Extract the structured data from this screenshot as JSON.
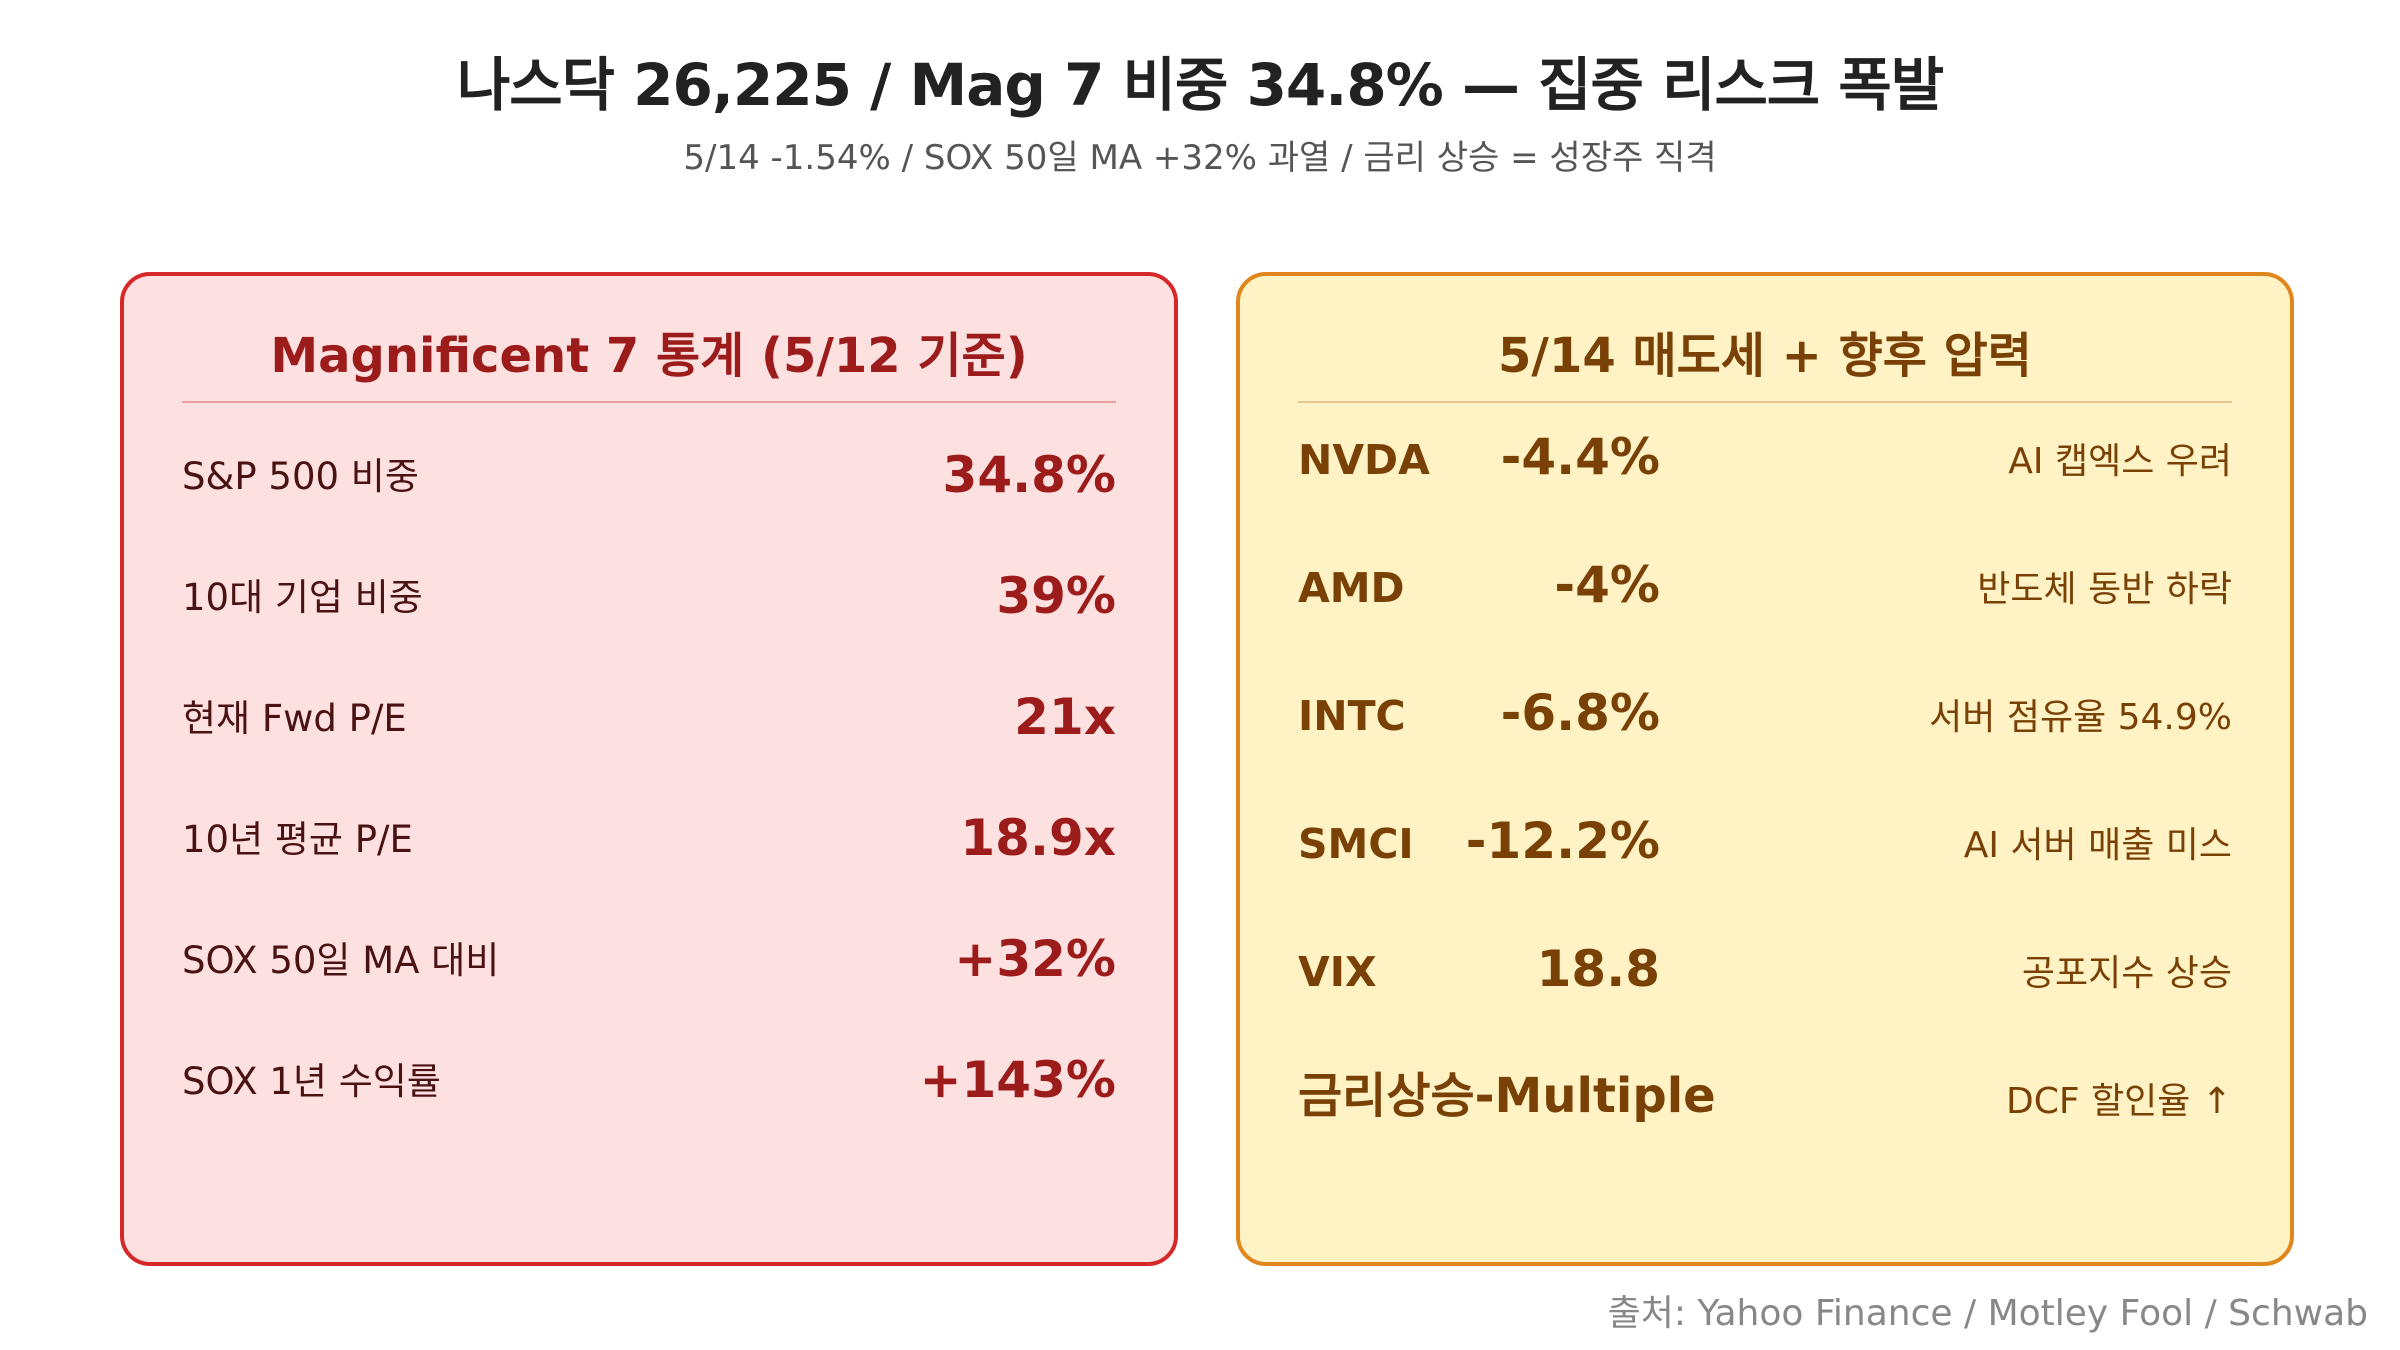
{
  "header": {
    "title": "나스닥 26,225 / Mag 7 비중 34.8% — 집중 리스크 폭발",
    "subtitle": "5/14 -1.54% / SOX 50일 MA +32% 과열 / 금리 상승 = 성장주 직격"
  },
  "left_panel": {
    "title": "Magnificent 7 통계 (5/12 기준)",
    "rows": [
      {
        "label": "S&P 500 비중",
        "value": "34.8%"
      },
      {
        "label": "10대 기업 비중",
        "value": "39%"
      },
      {
        "label": "현재 Fwd P/E",
        "value": "21x"
      },
      {
        "label": "10년 평균 P/E",
        "value": "18.9x"
      },
      {
        "label": "SOX 50일 MA 대비",
        "value": "+32%"
      },
      {
        "label": "SOX 1년 수익률",
        "value": "+143%"
      }
    ]
  },
  "right_panel": {
    "title": "5/14 매도세 + 향후 압력",
    "rows": [
      {
        "ticker": "NVDA",
        "change": "-4.4%",
        "note": "AI 캡엑스 우려"
      },
      {
        "ticker": "AMD",
        "change": "-4%",
        "note": "반도체 동반 하락"
      },
      {
        "ticker": "INTC",
        "change": "-6.8%",
        "note": "서버 점유율 54.9%"
      },
      {
        "ticker": "SMCI",
        "change": "-12.2%",
        "note": "AI 서버 매출 미스"
      },
      {
        "ticker": "VIX",
        "change": "18.8",
        "note": "공포지수 상승"
      }
    ],
    "last_row": {
      "label": "금리상승-Multiple",
      "note": "DCF 할인율 ↑"
    }
  },
  "footer": {
    "source": "출처: Yahoo Finance / Motley Fool / Schwab"
  },
  "colors": {
    "left_bg": "#fde1e1",
    "left_border": "#d62828",
    "left_accent": "#9c1c1c",
    "right_bg": "#fff2c4",
    "right_border": "#e0861c",
    "right_accent": "#7a4106"
  }
}
